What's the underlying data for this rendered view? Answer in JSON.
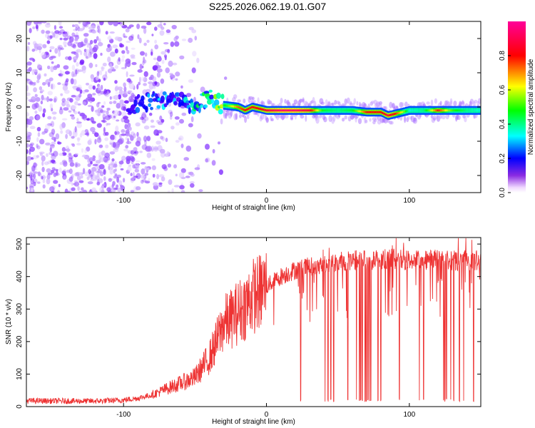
{
  "title": "S225.2026.062.19.01.G07",
  "chart_data": [
    {
      "type": "heatmap",
      "name": "spectrogram",
      "xlabel": "Height of straight line (km)",
      "ylabel": "Frequency (Hz)",
      "xlim": [
        -168,
        150
      ],
      "ylim": [
        -25,
        25
      ],
      "x_ticks": [
        -100,
        0,
        100
      ],
      "y_ticks": [
        -20,
        -10,
        0,
        10,
        20
      ],
      "colorbar": {
        "label": "Normalized spectral amplitude",
        "range": [
          0,
          1
        ],
        "ticks": [
          0.0,
          0.2,
          0.4,
          0.6,
          0.8
        ],
        "tick_labels": [
          "0.0",
          "0.2",
          "0.4",
          "0.6",
          "0.8"
        ],
        "colormap": [
          "#ffffff",
          "#6600ff",
          "#0000ff",
          "#00ffff",
          "#00ff00",
          "#ffff00",
          "#ff0000",
          "#ff00aa"
        ]
      },
      "ridge": {
        "x": [
          -100,
          -90,
          -80,
          -70,
          -60,
          -50,
          -45,
          -40,
          -35,
          -30,
          -20,
          -15,
          -10,
          -5,
          0,
          10,
          20,
          30,
          40,
          50,
          60,
          70,
          80,
          85,
          90,
          95,
          100,
          110,
          120,
          130,
          140,
          150
        ],
        "frequency": [
          -1,
          1,
          2,
          2,
          3,
          0,
          2,
          3,
          2,
          0.5,
          0,
          -1,
          0,
          -0.5,
          -1,
          -1,
          -1,
          -1,
          -1,
          -1,
          -1,
          -1.5,
          -1.5,
          -2.5,
          -2,
          -1.5,
          -1,
          -1,
          -1,
          -1,
          -1,
          -1
        ],
        "amplitude": [
          0.15,
          0.25,
          0.3,
          0.35,
          0.3,
          0.4,
          0.45,
          0.45,
          0.5,
          0.55,
          0.8,
          0.85,
          0.85,
          0.85,
          0.9,
          0.95,
          0.95,
          0.9,
          0.55,
          0.5,
          0.55,
          0.85,
          0.85,
          0.9,
          0.85,
          0.7,
          0.45,
          0.5,
          0.85,
          0.6,
          0.5,
          0.45
        ]
      }
    },
    {
      "type": "line",
      "name": "snr",
      "xlabel": "Height of straight line (km)",
      "ylabel": "SNR (10 * v/v)",
      "xlim": [
        -168,
        150
      ],
      "ylim": [
        0,
        520
      ],
      "x_ticks": [
        -100,
        0,
        100
      ],
      "y_ticks": [
        0,
        100,
        200,
        300,
        400,
        500
      ],
      "color": "#ee3333",
      "series": [
        {
          "name": "SNR",
          "x": [
            -168,
            -140,
            -120,
            -100,
            -90,
            -80,
            -70,
            -60,
            -50,
            -45,
            -40,
            -35,
            -30,
            -25,
            -20,
            -15,
            -10,
            -5,
            0,
            5,
            10,
            15,
            20,
            25,
            30,
            40,
            50,
            60,
            70,
            80,
            90,
            100,
            110,
            120,
            130,
            140,
            150
          ],
          "values": [
            18,
            17,
            17,
            20,
            26,
            36,
            55,
            72,
            90,
            120,
            150,
            200,
            255,
            270,
            290,
            310,
            340,
            350,
            370,
            385,
            400,
            410,
            420,
            425,
            430,
            440,
            445,
            450,
            450,
            452,
            455,
            450,
            448,
            452,
            450,
            448,
            450
          ],
          "dropouts_x": [
            24,
            41,
            43,
            45,
            47,
            57,
            63,
            65,
            66,
            67,
            69,
            70,
            71,
            72,
            73,
            78,
            80,
            93,
            107,
            110,
            124,
            125,
            126,
            129,
            131,
            135,
            138,
            145
          ]
        }
      ]
    }
  ]
}
